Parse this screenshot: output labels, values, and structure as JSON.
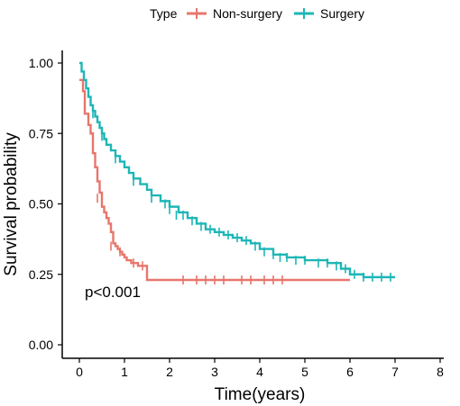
{
  "chart_data": {
    "type": "line",
    "xlabel": "Time(years)",
    "ylabel": "Survival probability",
    "xlim": [
      0,
      8
    ],
    "ylim": [
      0,
      1
    ],
    "x_ticks": [
      "0",
      "1",
      "2",
      "3",
      "4",
      "5",
      "6",
      "7",
      "8"
    ],
    "y_ticks": [
      "0.00",
      "0.25",
      "0.50",
      "0.75",
      "1.00"
    ],
    "grid": false,
    "legend": {
      "title": "Type",
      "placement": "top-center"
    },
    "annotation": "p<0.001",
    "series": [
      {
        "name": "Non-surgery",
        "color": "#E7766C",
        "steps": [
          [
            0,
            0.94
          ],
          [
            0.08,
            0.9
          ],
          [
            0.12,
            0.82
          ],
          [
            0.2,
            0.78
          ],
          [
            0.25,
            0.75
          ],
          [
            0.3,
            0.68
          ],
          [
            0.35,
            0.63
          ],
          [
            0.4,
            0.58
          ],
          [
            0.45,
            0.54
          ],
          [
            0.5,
            0.49
          ],
          [
            0.55,
            0.47
          ],
          [
            0.6,
            0.45
          ],
          [
            0.65,
            0.43
          ],
          [
            0.7,
            0.4
          ],
          [
            0.75,
            0.36
          ],
          [
            0.8,
            0.35
          ],
          [
            0.85,
            0.34
          ],
          [
            0.9,
            0.33
          ],
          [
            0.95,
            0.32
          ],
          [
            1.0,
            0.31
          ],
          [
            1.05,
            0.3
          ],
          [
            1.15,
            0.29
          ],
          [
            1.3,
            0.28
          ],
          [
            1.5,
            0.23
          ],
          [
            6.0,
            0.23
          ]
        ],
        "censor": [
          [
            0.4,
            0.52
          ],
          [
            0.7,
            0.35
          ],
          [
            0.9,
            0.33
          ],
          [
            1.2,
            0.29
          ],
          [
            1.4,
            0.28
          ],
          [
            2.3,
            0.23
          ],
          [
            2.6,
            0.23
          ],
          [
            2.8,
            0.23
          ],
          [
            3.0,
            0.23
          ],
          [
            3.2,
            0.23
          ],
          [
            3.6,
            0.23
          ],
          [
            3.8,
            0.23
          ],
          [
            4.1,
            0.23
          ],
          [
            4.3,
            0.23
          ],
          [
            4.5,
            0.23
          ]
        ]
      },
      {
        "name": "Surgery",
        "color": "#1EB6B6",
        "steps": [
          [
            0,
            1.0
          ],
          [
            0.05,
            0.97
          ],
          [
            0.1,
            0.94
          ],
          [
            0.15,
            0.91
          ],
          [
            0.2,
            0.88
          ],
          [
            0.25,
            0.85
          ],
          [
            0.3,
            0.83
          ],
          [
            0.35,
            0.81
          ],
          [
            0.4,
            0.79
          ],
          [
            0.45,
            0.77
          ],
          [
            0.5,
            0.75
          ],
          [
            0.55,
            0.73
          ],
          [
            0.6,
            0.71
          ],
          [
            0.7,
            0.69
          ],
          [
            0.8,
            0.67
          ],
          [
            0.9,
            0.65
          ],
          [
            1.0,
            0.63
          ],
          [
            1.1,
            0.61
          ],
          [
            1.2,
            0.59
          ],
          [
            1.35,
            0.57
          ],
          [
            1.5,
            0.55
          ],
          [
            1.6,
            0.53
          ],
          [
            1.8,
            0.51
          ],
          [
            2.0,
            0.49
          ],
          [
            2.2,
            0.47
          ],
          [
            2.4,
            0.45
          ],
          [
            2.6,
            0.43
          ],
          [
            2.8,
            0.41
          ],
          [
            3.0,
            0.4
          ],
          [
            3.2,
            0.39
          ],
          [
            3.4,
            0.38
          ],
          [
            3.6,
            0.37
          ],
          [
            3.8,
            0.36
          ],
          [
            4.0,
            0.34
          ],
          [
            4.3,
            0.32
          ],
          [
            4.6,
            0.31
          ],
          [
            5.0,
            0.3
          ],
          [
            5.5,
            0.29
          ],
          [
            5.8,
            0.27
          ],
          [
            6.0,
            0.25
          ],
          [
            6.3,
            0.24
          ],
          [
            7.0,
            0.24
          ]
        ],
        "censor": [
          [
            0.3,
            0.82
          ],
          [
            0.5,
            0.74
          ],
          [
            0.8,
            0.66
          ],
          [
            1.2,
            0.58
          ],
          [
            1.6,
            0.52
          ],
          [
            1.9,
            0.5
          ],
          [
            2.0,
            0.48
          ],
          [
            2.15,
            0.46
          ],
          [
            2.3,
            0.46
          ],
          [
            2.5,
            0.44
          ],
          [
            2.7,
            0.42
          ],
          [
            2.9,
            0.41
          ],
          [
            3.1,
            0.4
          ],
          [
            3.3,
            0.39
          ],
          [
            3.5,
            0.38
          ],
          [
            3.7,
            0.37
          ],
          [
            3.9,
            0.35
          ],
          [
            4.1,
            0.33
          ],
          [
            4.3,
            0.32
          ],
          [
            4.45,
            0.31
          ],
          [
            4.6,
            0.31
          ],
          [
            4.8,
            0.3
          ],
          [
            5.0,
            0.3
          ],
          [
            5.3,
            0.29
          ],
          [
            5.5,
            0.29
          ],
          [
            5.7,
            0.28
          ],
          [
            5.9,
            0.27
          ],
          [
            6.1,
            0.25
          ],
          [
            6.3,
            0.24
          ],
          [
            6.5,
            0.24
          ],
          [
            6.7,
            0.24
          ],
          [
            6.9,
            0.24
          ]
        ]
      }
    ]
  }
}
